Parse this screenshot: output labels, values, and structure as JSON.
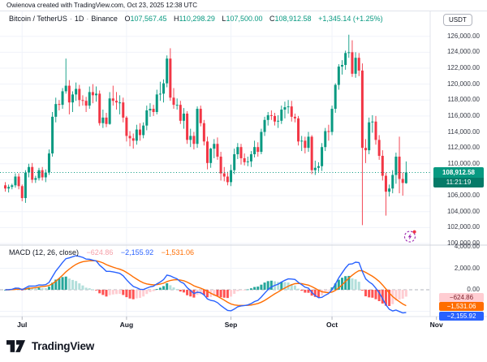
{
  "attribution": "Owienova created with TradingView.com, Oct 23, 2025 12:38 UTC",
  "header": {
    "symbol": "Bitcoin / TetherUS",
    "separator": "·",
    "interval": "1D",
    "exchange": "Binance",
    "ohlc": {
      "o_label": "O",
      "o": "107,567.45",
      "h_label": "H",
      "h": "110,298.29",
      "l_label": "L",
      "l": "107,500.00",
      "c_label": "C",
      "c": "108,912.58"
    },
    "change": "+1,345.14 (+1.25%)",
    "currency_button": "USDT"
  },
  "price_axis": {
    "labels": [
      "126,000.00",
      "124,000.00",
      "122,000.00",
      "120,000.00",
      "118,000.00",
      "116,000.00",
      "114,000.00",
      "112,000.00",
      "110,000.00",
      "108,000.00",
      "106,000.00",
      "104,000.00",
      "102,000.00",
      "100,000.00"
    ],
    "price_badge": {
      "price": "108,912.58",
      "countdown": "11:21:19"
    }
  },
  "macd_axis": {
    "labels": [
      "4,000.00",
      "2,000.00",
      "0.00"
    ],
    "badges": [
      {
        "text": "−624.86",
        "bg": "#FFCDD2",
        "fg": "#7F232D"
      },
      {
        "text": "−1,531.06",
        "bg": "#FF6D00",
        "fg": "#FFFFFF"
      },
      {
        "text": "−2,155.92",
        "bg": "#2962FF",
        "fg": "#FFFFFF"
      }
    ]
  },
  "indicator": {
    "label": "MACD (12, 26, close)",
    "hist_value": "−624.86",
    "macd_value": "−2,155.92",
    "signal_value": "−1,531.06"
  },
  "time_axis": {
    "labels": [
      "Jul",
      "Aug",
      "Sep",
      "Oct",
      "Nov"
    ]
  },
  "footer": {
    "logo_text": "TradingView"
  },
  "colors": {
    "up": "#089981",
    "down": "#F23645",
    "macd_line": "#2962FF",
    "signal_line": "#FF6D00",
    "hist_grow_above": "#26A69A",
    "hist_fall_above": "#B2DFDB",
    "hist_fall_below": "#FF5252",
    "hist_grow_below": "#FFCDD2",
    "grid": "#F0F3FA",
    "axis_border": "#E0E3EB",
    "separator": "#D1D4DC",
    "current_price_line": "#089981",
    "zero_line": "#B2B5BE",
    "flash_icon": "#9C27B0",
    "notification_dot": "#F23645"
  },
  "chart_data": {
    "type": "candlestick+macd",
    "title": "Bitcoin / TetherUS · 1D · Binance",
    "x_axis_months": [
      "Jul",
      "Aug",
      "Sep",
      "Oct",
      "Nov"
    ],
    "month_indices": [
      5,
      36,
      67,
      97,
      128
    ],
    "price_ylim": [
      100000,
      126000
    ],
    "macd_ylim": [
      -4000,
      4000
    ],
    "current_price": 108912.58,
    "macd_last": {
      "histogram": -624.86,
      "signal": -1531.06,
      "macd": -2155.92
    },
    "ohlc": [
      [
        107300,
        107700,
        106500,
        106900
      ],
      [
        106900,
        107400,
        106400,
        107100
      ],
      [
        107100,
        107500,
        106800,
        107300
      ],
      [
        107300,
        108800,
        107000,
        108400
      ],
      [
        108400,
        108800,
        106800,
        107200
      ],
      [
        107200,
        107400,
        105300,
        105700
      ],
      [
        105700,
        109200,
        105100,
        108900
      ],
      [
        108900,
        110000,
        108300,
        109600
      ],
      [
        109600,
        110100,
        107600,
        108000
      ],
      [
        108000,
        108500,
        107600,
        108200
      ],
      [
        108200,
        109500,
        107900,
        109200
      ],
      [
        109200,
        109600,
        107900,
        108300
      ],
      [
        108300,
        109300,
        107700,
        108900
      ],
      [
        108900,
        111800,
        108600,
        111300
      ],
      [
        111300,
        116500,
        110900,
        115900
      ],
      [
        115900,
        118300,
        115200,
        117500
      ],
      [
        117500,
        118000,
        116700,
        117400
      ],
      [
        117400,
        119500,
        116900,
        119100
      ],
      [
        119100,
        123200,
        118800,
        119800
      ],
      [
        119800,
        120500,
        116200,
        117700
      ],
      [
        117700,
        119100,
        116500,
        118700
      ],
      [
        118700,
        120200,
        117900,
        119400
      ],
      [
        119400,
        119900,
        117200,
        118000
      ],
      [
        118000,
        118600,
        117300,
        117900
      ],
      [
        117900,
        118400,
        116500,
        117300
      ],
      [
        117300,
        119700,
        116900,
        119000
      ],
      [
        119000,
        120000,
        117600,
        118600
      ],
      [
        118600,
        119700,
        117800,
        118800
      ],
      [
        118800,
        119200,
        114800,
        115100
      ],
      [
        115100,
        116800,
        114500,
        115800
      ],
      [
        115800,
        116400,
        114600,
        115000
      ],
      [
        115000,
        119000,
        114900,
        118200
      ],
      [
        118200,
        119800,
        117300,
        117900
      ],
      [
        117900,
        119000,
        116800,
        117700
      ],
      [
        117700,
        118600,
        116200,
        117700
      ],
      [
        117700,
        118300,
        115200,
        115800
      ],
      [
        115800,
        116000,
        112800,
        113500
      ],
      [
        113500,
        114100,
        112200,
        113200
      ],
      [
        113200,
        113800,
        111900,
        112900
      ],
      [
        112900,
        114900,
        112400,
        114300
      ],
      [
        114300,
        115100,
        112900,
        113600
      ],
      [
        113600,
        115200,
        113200,
        114800
      ],
      [
        114800,
        117300,
        114200,
        116700
      ],
      [
        116700,
        117600,
        115900,
        116900
      ],
      [
        116900,
        117400,
        116000,
        116500
      ],
      [
        116500,
        119300,
        116200,
        118700
      ],
      [
        118700,
        120300,
        117900,
        118800
      ],
      [
        118800,
        120600,
        117700,
        120100
      ],
      [
        120100,
        123600,
        119600,
        123200
      ],
      [
        123200,
        124500,
        117900,
        118300
      ],
      [
        118300,
        119500,
        116900,
        117400
      ],
      [
        117400,
        118200,
        116800,
        117400
      ],
      [
        117400,
        117900,
        115000,
        115400
      ],
      [
        115400,
        117000,
        114400,
        116300
      ],
      [
        116300,
        116600,
        112500,
        113000
      ],
      [
        113000,
        114400,
        112100,
        113500
      ],
      [
        113500,
        114000,
        111800,
        112500
      ],
      [
        112500,
        117200,
        112000,
        116900
      ],
      [
        116900,
        117300,
        114700,
        115100
      ],
      [
        115100,
        115500,
        112300,
        112800
      ],
      [
        112800,
        113400,
        109300,
        110100
      ],
      [
        110100,
        112000,
        109500,
        111900
      ],
      [
        111900,
        113100,
        110700,
        112500
      ],
      [
        112500,
        113300,
        110500,
        110900
      ],
      [
        110900,
        111500,
        107900,
        108800
      ],
      [
        108800,
        109600,
        107800,
        108400
      ],
      [
        108400,
        109000,
        107300,
        107700
      ],
      [
        107700,
        109900,
        107200,
        109200
      ],
      [
        109200,
        111900,
        108700,
        111200
      ],
      [
        111200,
        112600,
        110600,
        112100
      ],
      [
        112100,
        112500,
        109900,
        110700
      ],
      [
        110700,
        111300,
        109800,
        110200
      ],
      [
        110200,
        110900,
        109700,
        110300
      ],
      [
        110300,
        111600,
        109600,
        111200
      ],
      [
        111200,
        112900,
        110800,
        112100
      ],
      [
        112100,
        112700,
        110900,
        111500
      ],
      [
        111500,
        114400,
        111200,
        114000
      ],
      [
        114000,
        115900,
        113500,
        115500
      ],
      [
        115500,
        116500,
        114800,
        116100
      ],
      [
        116100,
        116700,
        115500,
        116000
      ],
      [
        116000,
        116400,
        114800,
        115300
      ],
      [
        115300,
        116100,
        114500,
        115400
      ],
      [
        115400,
        117300,
        115000,
        116800
      ],
      [
        116800,
        117800,
        115700,
        117100
      ],
      [
        117100,
        118000,
        116300,
        117200
      ],
      [
        117200,
        117900,
        115300,
        115900
      ],
      [
        115900,
        116300,
        115200,
        115700
      ],
      [
        115700,
        116000,
        112300,
        112800
      ],
      [
        112800,
        113500,
        111600,
        112900
      ],
      [
        112900,
        113400,
        111300,
        112000
      ],
      [
        112000,
        114000,
        111500,
        113400
      ],
      [
        113400,
        113600,
        108700,
        109200
      ],
      [
        109200,
        110400,
        108600,
        109500
      ],
      [
        109500,
        110200,
        109000,
        109700
      ],
      [
        109700,
        112600,
        109100,
        112100
      ],
      [
        112100,
        114500,
        111600,
        114100
      ],
      [
        114100,
        114900,
        112900,
        114000
      ],
      [
        114000,
        117300,
        113600,
        116900
      ],
      [
        116900,
        120100,
        116400,
        119900
      ],
      [
        119900,
        122500,
        119300,
        122200
      ],
      [
        122200,
        123000,
        121200,
        122400
      ],
      [
        122400,
        124200,
        121800,
        123900
      ],
      [
        123900,
        126200,
        123300,
        124000
      ],
      [
        124000,
        125500,
        120900,
        121300
      ],
      [
        121300,
        124000,
        120800,
        123300
      ],
      [
        123300,
        123900,
        121000,
        121700
      ],
      [
        121700,
        122600,
        102300,
        112000
      ],
      [
        112000,
        113100,
        110100,
        111700
      ],
      [
        111700,
        115800,
        111200,
        115200
      ],
      [
        115200,
        116100,
        113900,
        115300
      ],
      [
        115300,
        116000,
        112400,
        113000
      ],
      [
        113000,
        113600,
        110500,
        111000
      ],
      [
        111000,
        111700,
        107900,
        108500
      ],
      [
        108500,
        108900,
        103500,
        106500
      ],
      [
        106500,
        107400,
        105900,
        106900
      ],
      [
        106900,
        109200,
        106300,
        108600
      ],
      [
        108600,
        111400,
        107500,
        110900
      ],
      [
        110900,
        113400,
        106300,
        108100
      ],
      [
        108100,
        108900,
        106000,
        107600
      ],
      [
        107567,
        110298,
        107500,
        108912
      ]
    ]
  }
}
